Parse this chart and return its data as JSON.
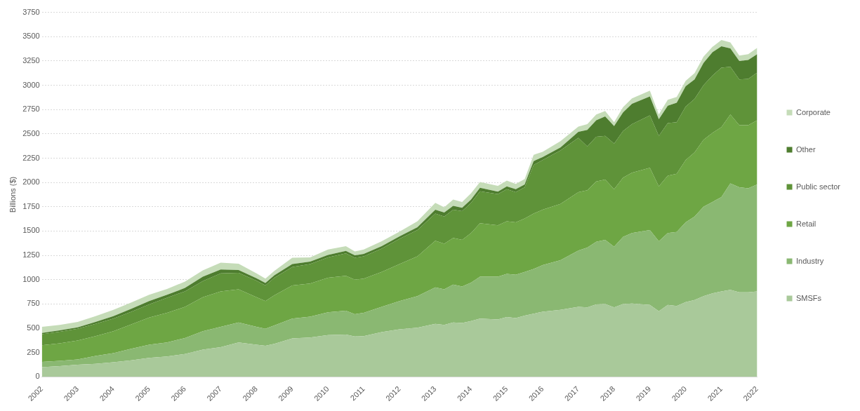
{
  "chart_data": {
    "type": "area",
    "ylabel": "Billions ($)",
    "stacked": true,
    "grid": "y",
    "legend": "right",
    "xlim": [
      2002,
      2022
    ],
    "xticks": [
      2002,
      2003,
      2004,
      2005,
      2006,
      2007,
      2008,
      2009,
      2010,
      2011,
      2012,
      2013,
      2014,
      2015,
      2016,
      2017,
      2018,
      2019,
      2020,
      2021,
      2022
    ],
    "ylim": [
      0,
      3750
    ],
    "yticks": [
      0,
      250,
      500,
      750,
      1000,
      1250,
      1500,
      1750,
      2000,
      2250,
      2500,
      2750,
      3000,
      3250,
      3500,
      3750
    ],
    "x": [
      2002,
      2002.5,
      2003,
      2003.5,
      2004,
      2004.5,
      2005,
      2005.5,
      2006,
      2006.5,
      2007,
      2007.5,
      2008,
      2008.25,
      2008.5,
      2009,
      2009.5,
      2010,
      2010.5,
      2010.75,
      2011,
      2011.5,
      2012,
      2012.5,
      2013,
      2013.25,
      2013.5,
      2013.75,
      2014,
      2014.25,
      2014.75,
      2015,
      2015.25,
      2015.5,
      2015.75,
      2016,
      2016.5,
      2017,
      2017.25,
      2017.5,
      2017.75,
      2018,
      2018.25,
      2018.5,
      2019,
      2019.25,
      2019.5,
      2019.75,
      2020,
      2020.25,
      2020.5,
      2020.75,
      2021,
      2021.25,
      2021.5,
      2021.75,
      2022
    ],
    "series": [
      {
        "name": "SMSFs",
        "color": "#a9c99a",
        "values": [
          100,
          110,
          125,
          135,
          150,
          170,
          195,
          210,
          235,
          280,
          305,
          355,
          330,
          320,
          340,
          395,
          405,
          430,
          435,
          415,
          420,
          460,
          490,
          505,
          545,
          535,
          560,
          555,
          575,
          600,
          590,
          615,
          605,
          630,
          650,
          670,
          690,
          720,
          715,
          745,
          750,
          715,
          750,
          755,
          740,
          675,
          740,
          730,
          770,
          790,
          830,
          860,
          880,
          895,
          870,
          870,
          880
        ]
      },
      {
        "name": "Industry",
        "color": "#8ab872",
        "values": [
          55,
          55,
          55,
          80,
          95,
          120,
          135,
          145,
          165,
          190,
          210,
          205,
          185,
          175,
          190,
          205,
          215,
          235,
          245,
          230,
          240,
          260,
          290,
          325,
          375,
          365,
          390,
          375,
          395,
          430,
          440,
          445,
          445,
          450,
          460,
          480,
          510,
          580,
          615,
          645,
          660,
          625,
          690,
          725,
          770,
          720,
          740,
          760,
          820,
          860,
          920,
          940,
          970,
          1095,
          1080,
          1070,
          1100
        ]
      },
      {
        "name": "Retail",
        "color": "#6ea644",
        "values": [
          170,
          180,
          195,
          205,
          225,
          250,
          280,
          305,
          320,
          350,
          365,
          340,
          305,
          285,
          310,
          340,
          340,
          355,
          360,
          355,
          350,
          360,
          380,
          410,
          480,
          470,
          480,
          480,
          510,
          550,
          530,
          540,
          540,
          550,
          570,
          570,
          580,
          600,
          590,
          620,
          620,
          590,
          610,
          620,
          640,
          565,
          590,
          600,
          640,
          660,
          690,
          710,
          720,
          710,
          640,
          650,
          660
        ]
      },
      {
        "name": "Public sector",
        "color": "#5f9339",
        "values": [
          115,
          120,
          120,
          125,
          130,
          130,
          135,
          155,
          160,
          165,
          185,
          170,
          170,
          160,
          180,
          190,
          200,
          210,
          230,
          225,
          230,
          240,
          260,
          270,
          280,
          280,
          290,
          295,
          310,
          330,
          320,
          330,
          310,
          320,
          500,
          510,
          550,
          560,
          450,
          460,
          450,
          470,
          480,
          500,
          540,
          520,
          540,
          530,
          550,
          550,
          560,
          590,
          610,
          490,
          470,
          475,
          490
        ]
      },
      {
        "name": "Other",
        "color": "#4e7d2f",
        "values": [
          12,
          13,
          15,
          20,
          25,
          30,
          35,
          30,
          35,
          45,
          40,
          30,
          25,
          25,
          25,
          30,
          25,
          25,
          25,
          25,
          25,
          25,
          25,
          30,
          40,
          40,
          40,
          35,
          35,
          35,
          25,
          30,
          30,
          30,
          40,
          30,
          30,
          60,
          170,
          170,
          200,
          180,
          190,
          210,
          195,
          170,
          180,
          200,
          210,
          200,
          230,
          240,
          220,
          190,
          190,
          195,
          190
        ]
      },
      {
        "name": "Corporate",
        "color": "#c5dcb8",
        "values": [
          63,
          57,
          55,
          60,
          65,
          65,
          65,
          60,
          65,
          65,
          70,
          65,
          50,
          45,
          45,
          65,
          45,
          55,
          50,
          40,
          45,
          50,
          50,
          60,
          70,
          55,
          65,
          60,
          65,
          60,
          60,
          60,
          55,
          55,
          65,
          55,
          65,
          55,
          60,
          60,
          55,
          40,
          55,
          55,
          60,
          50,
          60,
          60,
          55,
          65,
          65,
          55,
          65,
          60,
          55,
          60,
          65
        ]
      }
    ]
  }
}
